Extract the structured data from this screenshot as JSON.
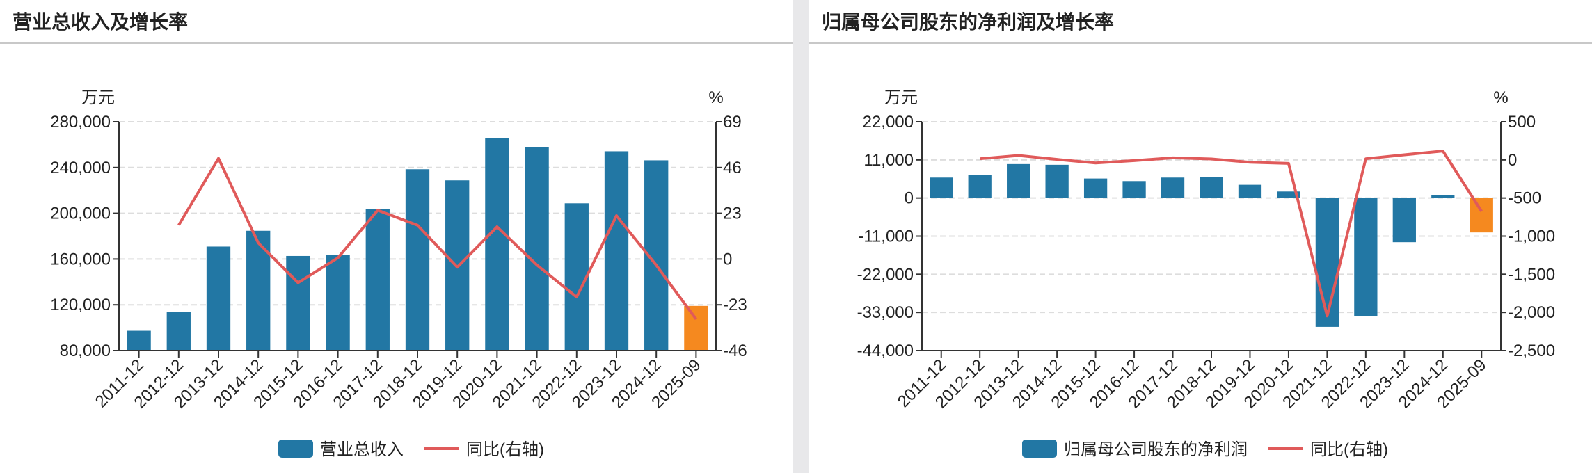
{
  "chart_data": [
    {
      "type": "bar+line",
      "title": "营业总收入及增长率",
      "categories": [
        "2011-12",
        "2012-12",
        "2013-12",
        "2014-12",
        "2015-12",
        "2016-12",
        "2017-12",
        "2018-12",
        "2019-12",
        "2020-12",
        "2021-12",
        "2022-12",
        "2023-12",
        "2024-12",
        "2025-09"
      ],
      "left_unit": "万元",
      "right_unit": "%",
      "left_ticks": [
        "280,000",
        "240,000",
        "200,000",
        "160,000",
        "120,000",
        "80,000"
      ],
      "right_ticks": [
        "69",
        "46",
        "23",
        "0",
        "-23",
        "-46"
      ],
      "ylim": [
        80000,
        280000
      ],
      "y2lim": [
        -46,
        69
      ],
      "grid": true,
      "legend_position": "bottom",
      "series": [
        {
          "name": "营业总收入",
          "type": "bar",
          "color": "#2277a4",
          "highlight_last_color": "#f5891f",
          "values": [
            97300,
            113500,
            170900,
            184700,
            162700,
            163700,
            203800,
            238500,
            228800,
            266000,
            258000,
            208700,
            254200,
            246300,
            119000
          ]
        },
        {
          "name": "同比(右轴)",
          "type": "line",
          "axis": "right",
          "color": "#e05a5a",
          "values": [
            null,
            17.0,
            50.6,
            8.1,
            -11.9,
            0.6,
            24.5,
            17.0,
            -4.1,
            16.2,
            -3.0,
            -19.1,
            21.8,
            -3.1,
            -30.2
          ]
        }
      ]
    },
    {
      "type": "bar+line",
      "title": "归属母公司股东的净利润及增长率",
      "categories": [
        "2011-12",
        "2012-12",
        "2013-12",
        "2014-12",
        "2015-12",
        "2016-12",
        "2017-12",
        "2018-12",
        "2019-12",
        "2020-12",
        "2021-12",
        "2022-12",
        "2023-12",
        "2024-12",
        "2025-09"
      ],
      "left_unit": "万元",
      "right_unit": "%",
      "left_ticks": [
        "22,000",
        "11,000",
        "0",
        "-11,000",
        "-22,000",
        "-33,000",
        "-44,000"
      ],
      "right_ticks": [
        "500",
        "0",
        "-500",
        "-1,000",
        "-1,500",
        "-2,000",
        "-2,500"
      ],
      "ylim": [
        -44000,
        22000
      ],
      "y2lim": [
        -2500,
        500
      ],
      "grid": true,
      "legend_position": "bottom",
      "series": [
        {
          "name": "归属母公司股东的净利润",
          "type": "bar",
          "color": "#2277a4",
          "highlight_last_color": "#f5891f",
          "values": [
            5900,
            6570,
            9790,
            9590,
            5630,
            4890,
            5900,
            5970,
            3820,
            1880,
            -37160,
            -34140,
            -12740,
            800,
            -9930
          ]
        },
        {
          "name": "同比(右轴)",
          "type": "line",
          "axis": "right",
          "color": "#e05a5a",
          "values": [
            null,
            15,
            58,
            6,
            -40,
            -9,
            27,
            12,
            -31,
            -46,
            -2046,
            15,
            67,
            116,
            -674
          ]
        }
      ]
    }
  ]
}
